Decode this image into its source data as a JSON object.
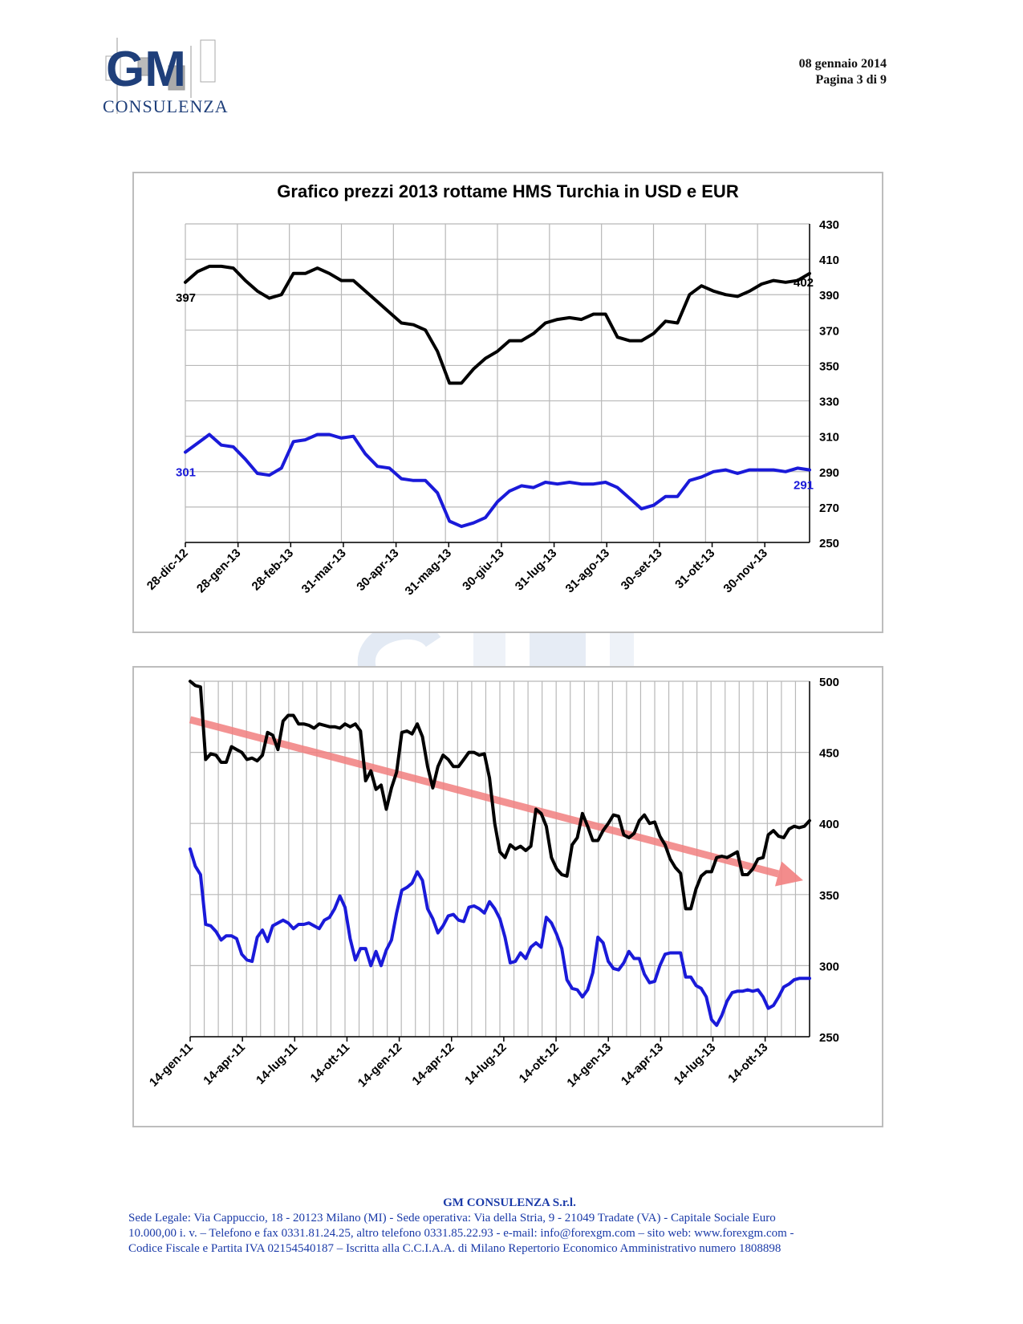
{
  "header": {
    "logo_letters": "GM",
    "logo_word": "CONSULENZA",
    "date": "08 gennaio 2014",
    "page": "Pagina 3 di 9"
  },
  "colors": {
    "usd": "#000000",
    "eur": "#1a1ad9",
    "trend": "#f28080",
    "grid": "#b8b8b8",
    "footer": "#1a3aa8"
  },
  "chart_data": [
    {
      "type": "line",
      "title": "Grafico prezzi 2013 rottame HMS Turchia in USD e EUR",
      "y_axis_side": "right",
      "ylim": [
        250,
        430
      ],
      "yticks": [
        250,
        270,
        290,
        310,
        330,
        350,
        370,
        390,
        410,
        430
      ],
      "xtick_labels": [
        "28-dic-12",
        "28-gen-13",
        "28-feb-13",
        "31-mar-13",
        "30-apr-13",
        "31-mag-13",
        "30-giu-13",
        "31-lug-13",
        "31-ago-13",
        "30-set-13",
        "31-ott-13",
        "30-nov-13"
      ],
      "grid": true,
      "series": [
        {
          "color": "#000000",
          "values": [
            397,
            403,
            406,
            406,
            405,
            398,
            392,
            388,
            390,
            402,
            402,
            405,
            402,
            398,
            398,
            392,
            386,
            380,
            374,
            373,
            370,
            358,
            340,
            340,
            348,
            354,
            358,
            364,
            364,
            368,
            374,
            376,
            377,
            376,
            379,
            379,
            366,
            364,
            364,
            368,
            375,
            374,
            390,
            395,
            392,
            390,
            389,
            392,
            396,
            398,
            397,
            398,
            402
          ],
          "start_label": "397",
          "end_label": "402"
        },
        {
          "color": "#1a1ad9",
          "values": [
            301,
            306,
            311,
            305,
            304,
            297,
            289,
            288,
            292,
            307,
            308,
            311,
            311,
            309,
            310,
            300,
            293,
            292,
            286,
            285,
            285,
            278,
            262,
            259,
            261,
            264,
            273,
            279,
            282,
            281,
            284,
            283,
            284,
            283,
            283,
            284,
            281,
            275,
            269,
            271,
            276,
            276,
            285,
            287,
            290,
            291,
            289,
            291,
            291,
            291,
            290,
            292,
            291
          ],
          "start_label": "301",
          "end_label": "291"
        }
      ]
    },
    {
      "type": "line",
      "y_axis_side": "right",
      "ylim": [
        250,
        500
      ],
      "yticks": [
        250,
        300,
        350,
        400,
        450,
        500
      ],
      "xtick_labels": [
        "14-gen-11",
        "14-apr-11",
        "14-lug-11",
        "14-ott-11",
        "14-gen-12",
        "14-apr-12",
        "14-lug-12",
        "14-ott-12",
        "14-gen-13",
        "14-apr-13",
        "14-lug-13",
        "14-ott-13"
      ],
      "grid": true,
      "trend": {
        "start": 473,
        "end": 360,
        "color": "#f28080"
      },
      "series": [
        {
          "color": "#000000",
          "values": [
            500,
            497,
            496,
            445,
            449,
            448,
            443,
            443,
            454,
            452,
            450,
            445,
            446,
            444,
            448,
            464,
            462,
            452,
            472,
            476,
            476,
            470,
            470,
            469,
            467,
            470,
            469,
            468,
            468,
            467,
            470,
            468,
            470,
            465,
            430,
            437,
            424,
            427,
            410,
            425,
            436,
            464,
            465,
            463,
            470,
            461,
            440,
            425,
            440,
            448,
            445,
            440,
            440,
            445,
            450,
            450,
            448,
            449,
            432,
            400,
            380,
            376,
            385,
            382,
            384,
            381,
            384,
            410,
            407,
            398,
            376,
            368,
            364,
            363,
            385,
            390,
            407,
            398,
            388,
            388,
            395,
            400,
            406,
            405,
            392,
            390,
            393,
            402,
            406,
            400,
            401,
            391,
            385,
            375,
            369,
            365,
            340,
            340,
            354,
            363,
            366,
            366,
            376,
            377,
            376,
            378,
            380,
            364,
            364,
            368,
            375,
            376,
            392,
            395,
            391,
            390,
            396,
            398,
            397,
            398,
            402
          ]
        },
        {
          "color": "#1a1ad9",
          "values": [
            382,
            370,
            364,
            329,
            328,
            324,
            318,
            321,
            321,
            319,
            308,
            304,
            303,
            320,
            325,
            317,
            328,
            330,
            332,
            330,
            326,
            329,
            329,
            330,
            328,
            326,
            332,
            334,
            340,
            349,
            341,
            319,
            304,
            312,
            312,
            300,
            310,
            300,
            311,
            318,
            337,
            353,
            355,
            358,
            366,
            360,
            340,
            333,
            323,
            328,
            335,
            336,
            332,
            331,
            341,
            342,
            340,
            337,
            345,
            340,
            333,
            320,
            302,
            303,
            309,
            305,
            313,
            316,
            313,
            334,
            330,
            322,
            312,
            290,
            284,
            283,
            278,
            283,
            295,
            320,
            316,
            303,
            298,
            297,
            302,
            310,
            305,
            305,
            294,
            288,
            289,
            300,
            308,
            309,
            309,
            309,
            292,
            292,
            286,
            284,
            278,
            262,
            258,
            265,
            275,
            281,
            282,
            282,
            283,
            282,
            283,
            278,
            270,
            272,
            278,
            285,
            287,
            290,
            291,
            291,
            291
          ]
        }
      ]
    }
  ],
  "footer": {
    "company": "GM CONSULENZA S.r.l.",
    "line1": "Sede Legale: Via Cappuccio, 18 - 20123 Milano (MI) - Sede operativa: Via della Stria, 9 - 21049 Tradate (VA) - Capitale Sociale Euro",
    "line2": "10.000,00 i. v. – Telefono e fax 0331.81.24.25, altro telefono 0331.85.22.93 - e-mail: info@forexgm.com – sito web: www.forexgm.com -",
    "line3": "Codice Fiscale e Partita IVA 02154540187 – Iscritta alla C.C.I.A.A. di Milano Repertorio Economico Amministrativo numero 1808898"
  }
}
